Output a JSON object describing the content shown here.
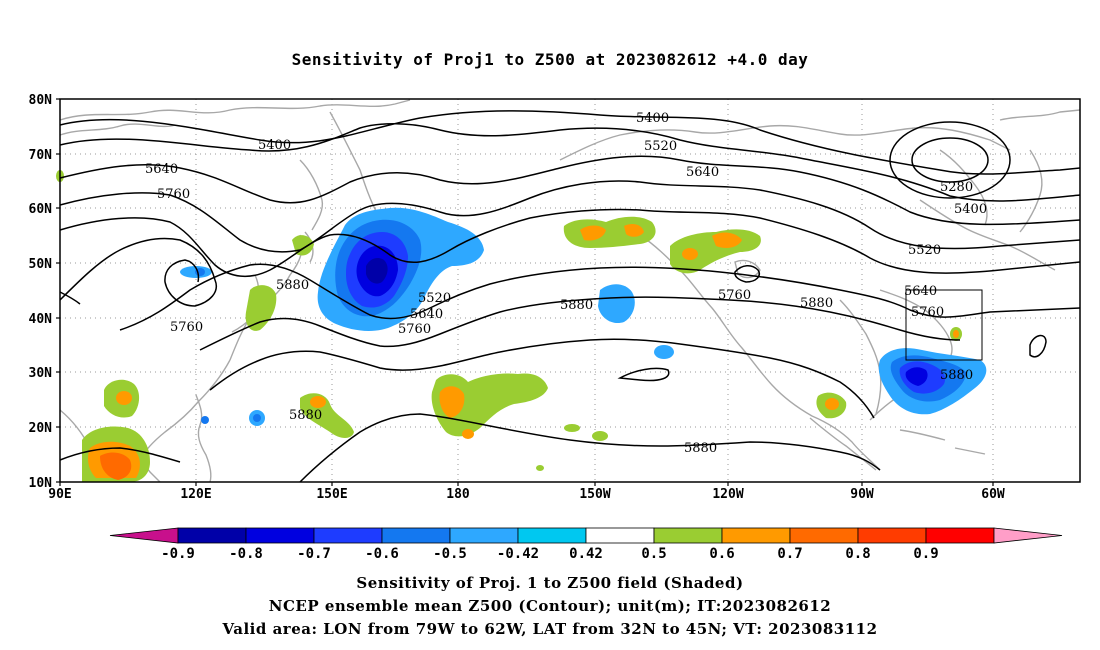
{
  "title": "Sensitivity of Proj1 to Z500 at 2023082612 +4.0 day",
  "lat_labels": [
    "80N",
    "70N",
    "60N",
    "50N",
    "40N",
    "30N",
    "20N",
    "10N"
  ],
  "lon_labels": [
    "90E",
    "120E",
    "150E",
    "180",
    "150W",
    "120W",
    "90W",
    "60W"
  ],
  "contour_labels": {
    "c5400a": "5400",
    "c5400b": "5400",
    "c5400c": "5400",
    "c5520a": "5520",
    "c5520b": "5520",
    "c5520c": "5520",
    "c5640a": "5640",
    "c5640b": "5640",
    "c5640c": "5640",
    "c5640d": "5640",
    "c5760a": "5760",
    "c5760b": "5760",
    "c5760c": "5760",
    "c5760d": "5760",
    "c5760e": "5760",
    "c5880a": "5880",
    "c5880b": "5880",
    "c5880c": "5880",
    "c5880d": "5880",
    "c5880e": "5880",
    "c5880f": "5880",
    "c5280": "5280"
  },
  "colorbar": {
    "labels": [
      "-0.9",
      "-0.8",
      "-0.7",
      "-0.6",
      "-0.5",
      "-0.42",
      "0.42",
      "0.5",
      "0.6",
      "0.7",
      "0.8",
      "0.9"
    ],
    "colors": [
      "#0000a8",
      "#0000e0",
      "#1e3cff",
      "#1478f0",
      "#2ea8ff",
      "#00c8f0",
      "#ffffff",
      "#9acd32",
      "#ff9a00",
      "#ff6a00",
      "#ff3c00",
      "#ff0000"
    ],
    "left_arrow": "#c8108c",
    "right_arrow": "#ff9ec8"
  },
  "caption": {
    "line1": "Sensitivity of Proj. 1 to Z500 field (Shaded)",
    "line2": "NCEP ensemble mean Z500 (Contour); unit(m); IT:2023082612",
    "line3": "Valid area: LON from 79W to 62W, LAT from 32N to 45N; VT: 2023083112"
  }
}
